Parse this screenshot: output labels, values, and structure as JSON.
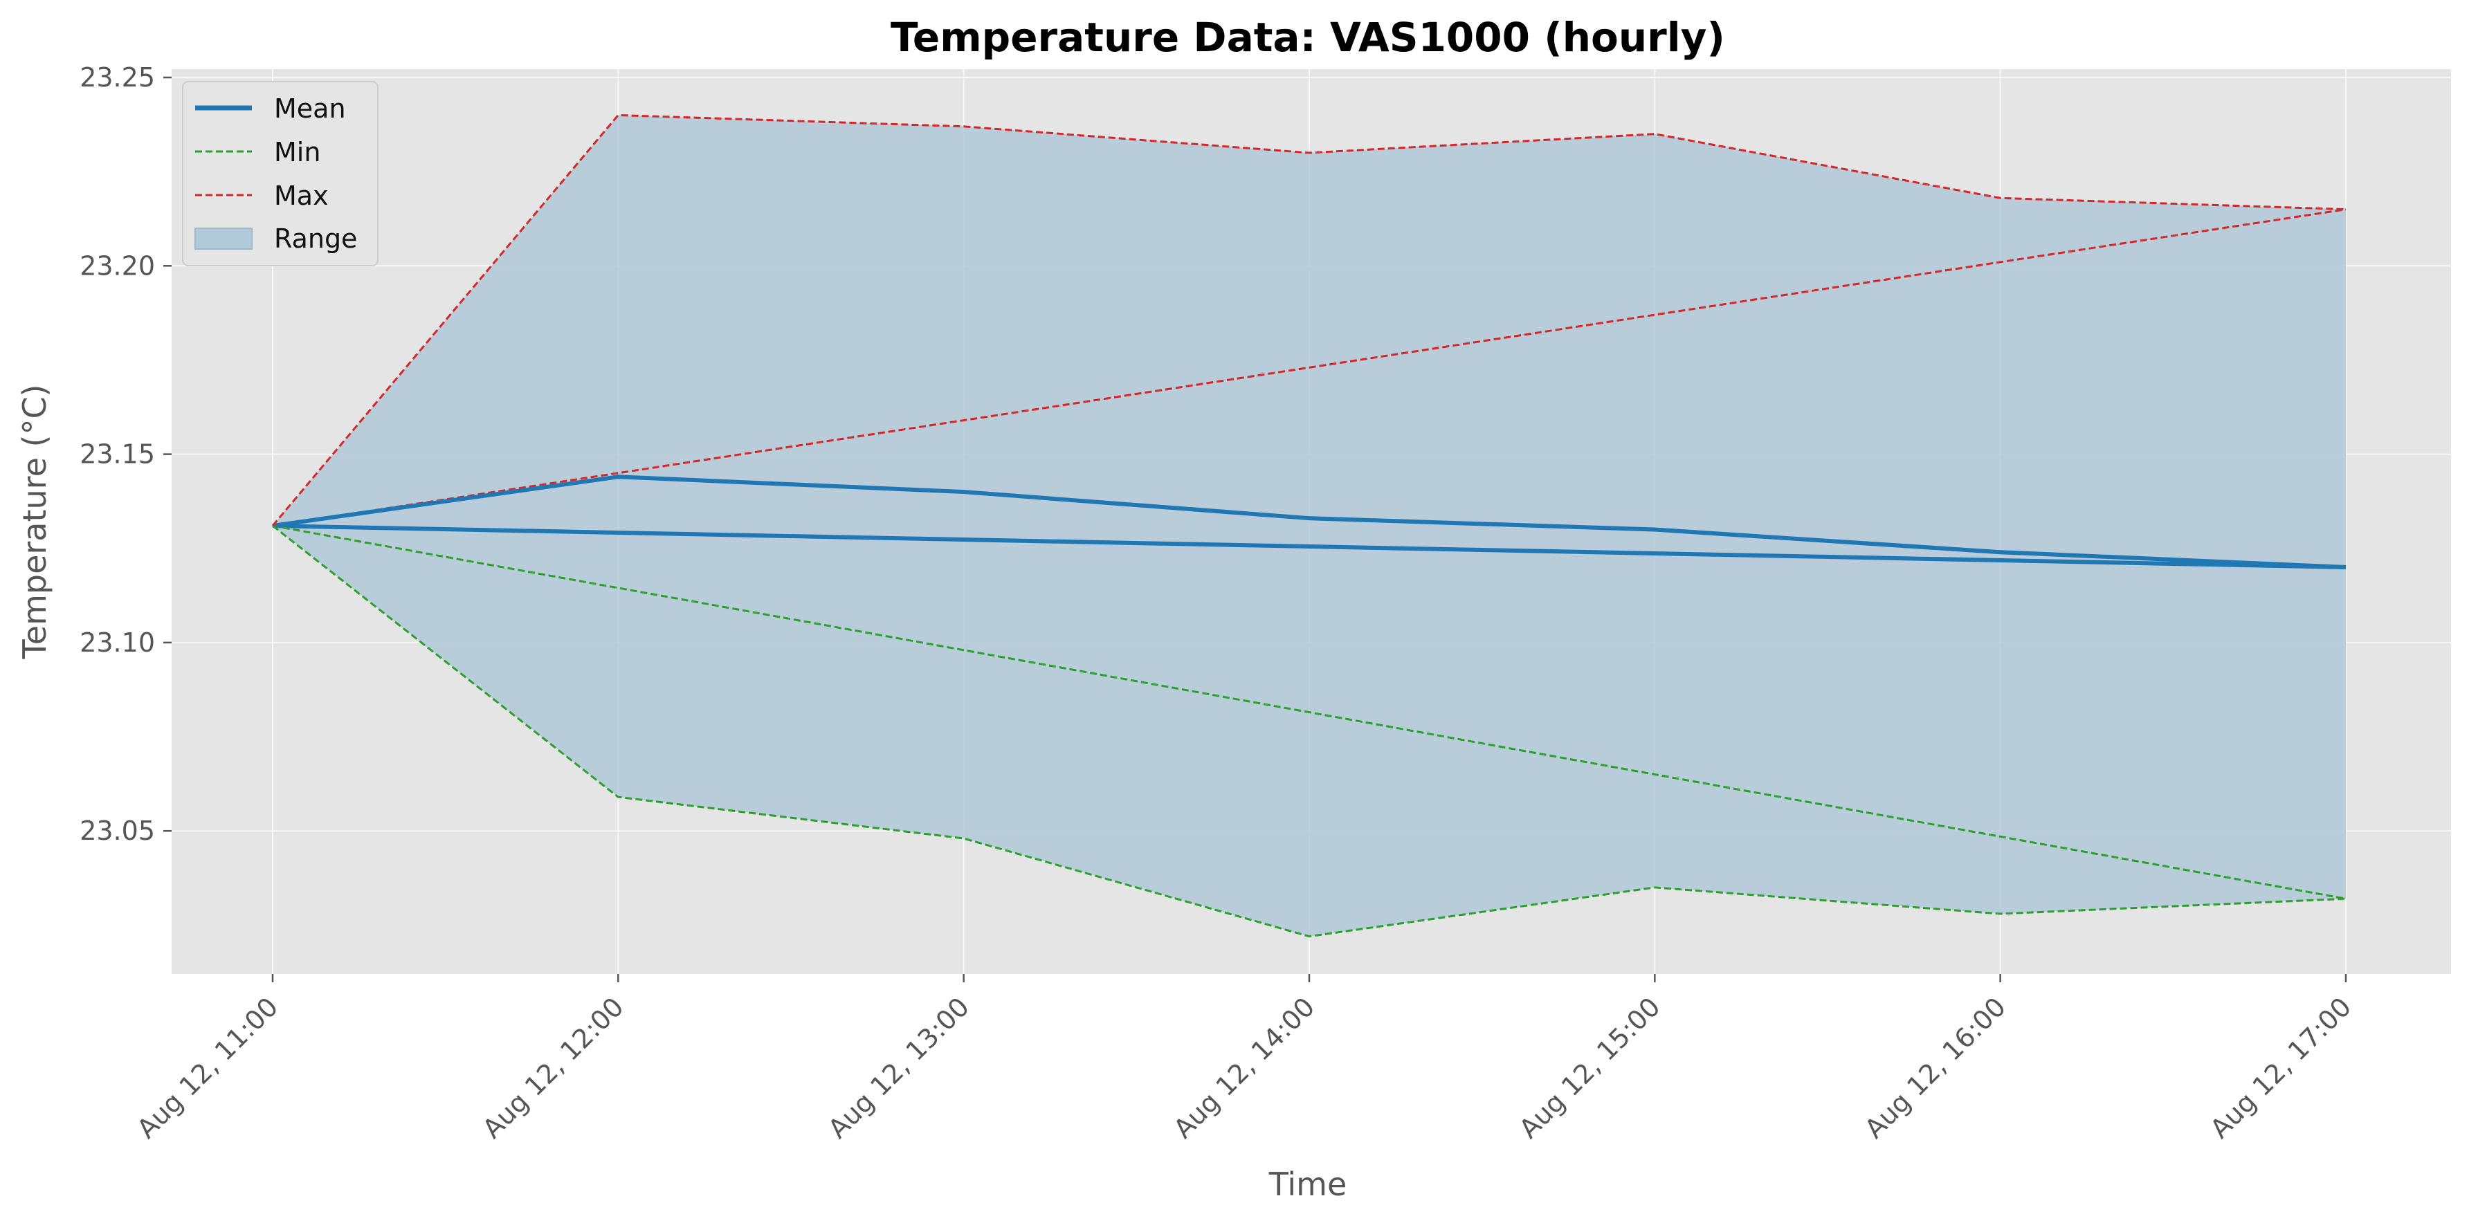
{
  "chart_data": {
    "type": "line",
    "title": "Temperature Data: VAS1000 (hourly)",
    "xlabel": "Time",
    "ylabel": "Temperature (°C)",
    "categories": [
      "Aug 12, 11:00",
      "Aug 12, 12:00",
      "Aug 12, 13:00",
      "Aug 12, 14:00",
      "Aug 12, 15:00",
      "Aug 12, 16:00",
      "Aug 12, 17:00"
    ],
    "yticks": [
      "23.05",
      "23.10",
      "23.15",
      "23.20",
      "23.25"
    ],
    "ylim": [
      23.01,
      23.25
    ],
    "grid": true,
    "legend_position": "top-left",
    "series": [
      {
        "name": "Mean",
        "style": "solid",
        "color": "#1f77b4",
        "values": [
          23.131,
          23.144,
          23.14,
          23.133,
          23.13,
          23.124,
          23.12
        ]
      },
      {
        "name": "Min",
        "style": "dashed",
        "color": "#2ca02c",
        "values": [
          23.131,
          23.059,
          23.048,
          23.022,
          23.035,
          23.028,
          23.032
        ]
      },
      {
        "name": "Max",
        "style": "dashed",
        "color": "#d62728",
        "values": [
          23.131,
          23.24,
          23.237,
          23.23,
          23.235,
          23.218,
          23.215
        ]
      },
      {
        "name": "Range",
        "style": "fill",
        "color": "#b0c8d8",
        "between": [
          "Min",
          "Max"
        ]
      }
    ],
    "trend_lines": [
      {
        "series": "Mean",
        "color": "#1f77b4",
        "from": 23.131,
        "to": 23.12
      },
      {
        "series": "Min",
        "color": "#2ca02c",
        "from": 23.131,
        "to": 23.032
      },
      {
        "series": "Max",
        "color": "#d62728",
        "from": 23.131,
        "to": 23.215
      }
    ],
    "colors": {
      "plot_background": "#e5e5e5",
      "mean": "#1f77b4",
      "min": "#2ca02c",
      "max": "#d62728",
      "range_fill": "#b0c8d8"
    }
  }
}
